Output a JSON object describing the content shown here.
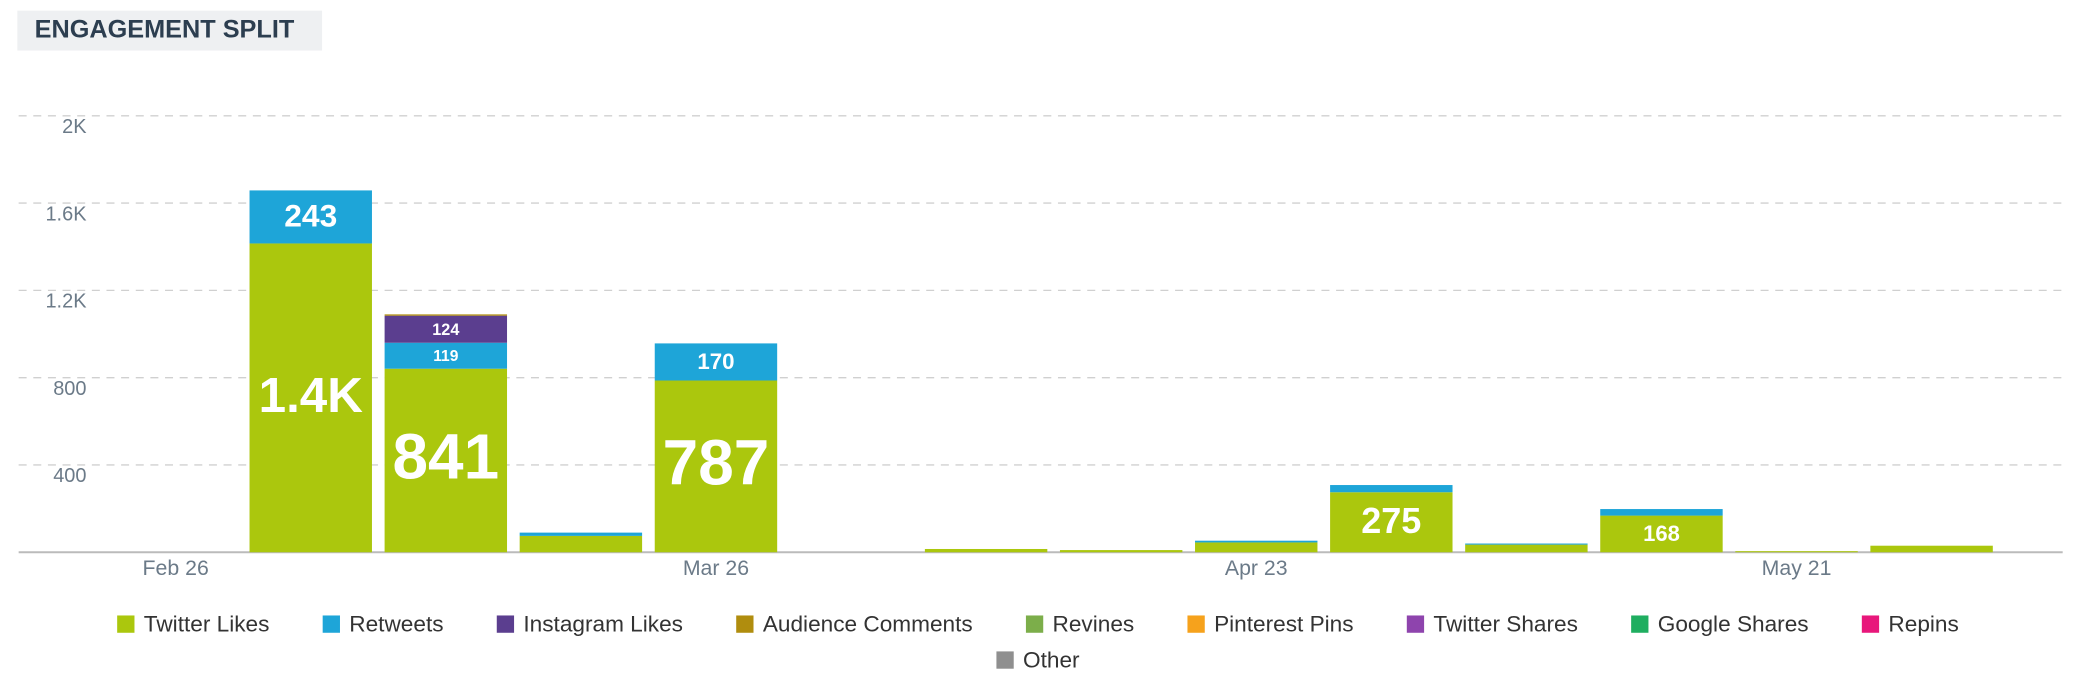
{
  "chart_data": {
    "type": "stacked_bar",
    "title": "ENGAGEMENT SPLIT",
    "categories": [
      "Feb 26",
      null,
      null,
      null,
      "Mar 26",
      null,
      null,
      null,
      "Apr 23",
      null,
      null,
      null,
      "May 21",
      null
    ],
    "series": [
      {
        "name": "Twitter Likes",
        "color": "#abc70d",
        "values": [
          0,
          1415,
          841,
          75,
          787,
          0,
          15,
          10,
          45,
          275,
          35,
          168,
          5,
          30
        ],
        "value_labels": [
          null,
          "1.4K",
          null,
          null,
          null,
          null,
          null,
          null,
          null,
          null,
          null,
          null,
          null,
          null
        ]
      },
      {
        "name": "Retweets",
        "color": "#1ea5d8",
        "values": [
          0,
          243,
          119,
          15,
          170,
          0,
          0,
          0,
          8,
          33,
          5,
          30,
          0,
          0
        ]
      },
      {
        "name": "Instagram Likes",
        "color": "#5b3e8f",
        "values": [
          0,
          0,
          124,
          0,
          0,
          0,
          0,
          0,
          0,
          0,
          0,
          0,
          0,
          0
        ]
      },
      {
        "name": "Audience Comments",
        "color": "#b08d0e",
        "values": [
          0,
          0,
          6,
          0,
          0,
          0,
          0,
          0,
          0,
          0,
          0,
          0,
          0,
          0
        ]
      },
      {
        "name": "Revines",
        "color": "#7cae4a",
        "values": [
          0,
          0,
          0,
          0,
          0,
          0,
          0,
          0,
          0,
          0,
          0,
          0,
          0,
          0
        ]
      },
      {
        "name": "Pinterest Pins",
        "color": "#f6a21c",
        "values": [
          0,
          0,
          0,
          0,
          0,
          0,
          0,
          0,
          0,
          0,
          0,
          0,
          0,
          0
        ]
      },
      {
        "name": "Twitter Shares",
        "color": "#8e44ad",
        "values": [
          0,
          0,
          0,
          0,
          0,
          0,
          0,
          0,
          0,
          0,
          0,
          0,
          0,
          0
        ]
      },
      {
        "name": "Google Shares",
        "color": "#1fae60",
        "values": [
          0,
          0,
          0,
          0,
          0,
          0,
          0,
          0,
          0,
          0,
          0,
          0,
          0,
          0
        ]
      },
      {
        "name": "Repins",
        "color": "#e8177b",
        "values": [
          0,
          0,
          0,
          0,
          0,
          0,
          0,
          0,
          0,
          0,
          0,
          0,
          0,
          0
        ]
      },
      {
        "name": "Other",
        "color": "#8f8f8f",
        "values": [
          0,
          0,
          0,
          0,
          0,
          0,
          0,
          0,
          0,
          0,
          0,
          0,
          0,
          0
        ]
      }
    ],
    "ylim": [
      0,
      2000
    ],
    "yticks": [
      400,
      800,
      {
        "value": 1200,
        "label": "1.2K"
      },
      {
        "value": 1600,
        "label": "1.6K"
      },
      {
        "value": 2000,
        "label": "2K"
      }
    ],
    "grid": true
  }
}
